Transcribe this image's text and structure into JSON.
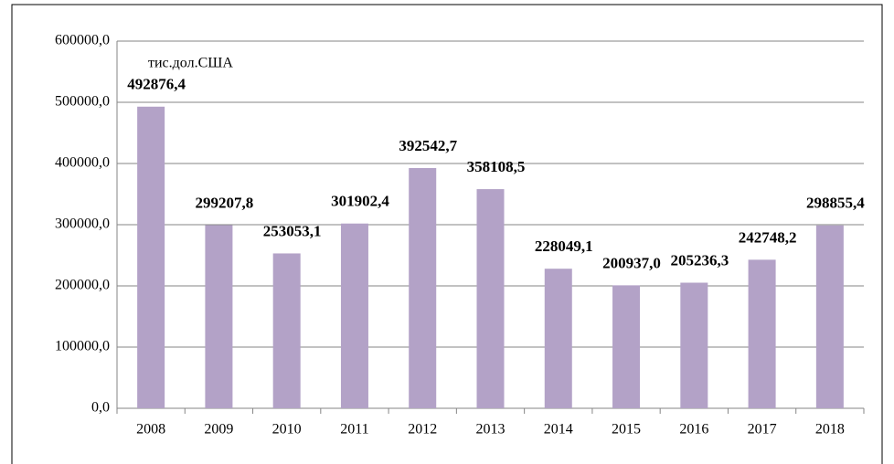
{
  "chart_data": {
    "type": "bar",
    "annotation": "тис.дол.США",
    "categories": [
      "2008",
      "2009",
      "2010",
      "2011",
      "2012",
      "2013",
      "2014",
      "2015",
      "2016",
      "2017",
      "2018"
    ],
    "values": [
      492876.4,
      299207.8,
      253053.1,
      301902.4,
      392542.7,
      358108.5,
      228049.1,
      200937.0,
      205236.3,
      242748.2,
      298855.4
    ],
    "value_labels": [
      "492876,4",
      "299207,8",
      "253053,1",
      "301902,4",
      "392542,7",
      "358108,5",
      "228049,1",
      "200937,0",
      "205236,3",
      "242748,2",
      "298855,4"
    ],
    "color": "#b3a2c7",
    "ylim": [
      0,
      600000
    ],
    "yticks": [
      {
        "value": 0,
        "label": "0,0"
      },
      {
        "value": 100000,
        "label": "100000,0"
      },
      {
        "value": 200000,
        "label": "200000,0"
      },
      {
        "value": 300000,
        "label": "300000,0"
      },
      {
        "value": 400000,
        "label": "400000,0"
      },
      {
        "value": 500000,
        "label": "500000,0"
      },
      {
        "value": 600000,
        "label": "600000,0"
      }
    ],
    "grid": true
  }
}
